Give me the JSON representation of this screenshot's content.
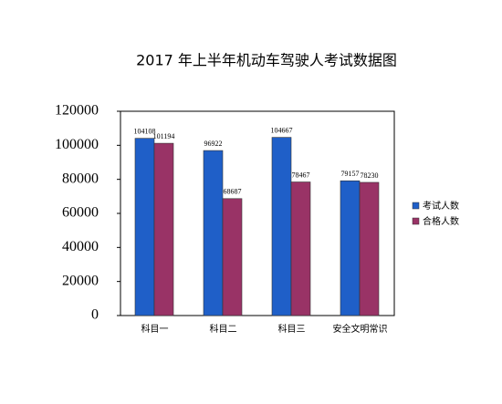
{
  "chart_data": {
    "type": "bar",
    "title": "2017 年上半年机动车驾驶人考试数据图",
    "categories": [
      "科目一",
      "科目二",
      "科目三",
      "安全文明常识"
    ],
    "series": [
      {
        "name": "考试人数",
        "color": "#1f5fc8",
        "values": [
          104108,
          96922,
          104667,
          79157
        ]
      },
      {
        "name": "合格人数",
        "color": "#993366",
        "values": [
          101194,
          68687,
          78467,
          78230
        ]
      }
    ],
    "ylim": [
      0,
      120000
    ],
    "yticks": [
      0,
      20000,
      40000,
      60000,
      80000,
      100000,
      120000
    ],
    "grid": false,
    "legend": "right"
  }
}
